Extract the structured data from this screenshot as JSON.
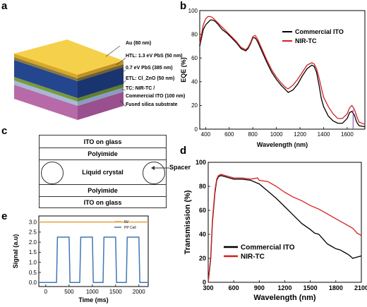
{
  "panels": {
    "a": "a",
    "b": "b",
    "c": "c",
    "d": "d",
    "e": "e"
  },
  "stack": {
    "layers": [
      "Au (80 nm)",
      "HTL: 1.3 eV PbS (50 nm)",
      "0.7 eV PbS (385 nm)",
      "ETL: Cl_ZnO (50 nm)",
      "TC: NIR-TC /",
      "Commercial ITO (100 nm)",
      "Fused silica substrate"
    ],
    "colors": {
      "gold": "#f2c232",
      "pbs": "#1f3d8f",
      "zno": "#7a9a3a",
      "tco": "#9fb0d0",
      "silica": "#c98ac0"
    }
  },
  "lc_cell": {
    "layers": [
      "ITO on glass",
      "Polyimide",
      "Liquid crystal",
      "Polyimide",
      "ITO on glass"
    ],
    "spacer_label": "Spacer"
  },
  "chart_data": [
    {
      "type": "line",
      "panel": "b",
      "xlabel": "Wavelength (nm)",
      "ylabel": "EQE (%)",
      "xlim": [
        350,
        1750
      ],
      "ylim": [
        0,
        100
      ],
      "xticks": [
        400,
        600,
        800,
        1000,
        1200,
        1400,
        1600
      ],
      "yticks": [
        0,
        20,
        40,
        60,
        80,
        100
      ],
      "legend_position": "top-right",
      "series": [
        {
          "name": "Commercial ITO",
          "color": "#000000",
          "x": [
            350,
            380,
            400,
            420,
            440,
            460,
            480,
            500,
            540,
            580,
            620,
            660,
            700,
            740,
            760,
            780,
            800,
            820,
            840,
            880,
            920,
            960,
            1000,
            1040,
            1080,
            1100,
            1140,
            1180,
            1220,
            1260,
            1300,
            1320,
            1340,
            1360,
            1380,
            1400,
            1440,
            1480,
            1520,
            1560,
            1600,
            1620,
            1640,
            1660,
            1680,
            1700,
            1750
          ],
          "y": [
            70,
            84,
            88,
            90,
            92,
            92,
            91,
            89,
            84,
            81,
            77,
            73,
            68,
            66,
            68,
            72,
            77,
            77,
            74,
            65,
            56,
            48,
            42,
            37,
            33,
            31,
            33,
            38,
            45,
            51,
            54,
            53,
            48,
            38,
            26,
            19,
            11,
            7,
            5,
            5,
            9,
            14,
            15,
            12,
            6,
            3,
            2
          ]
        },
        {
          "name": "NIR-TC",
          "color": "#d42020",
          "x": [
            350,
            380,
            400,
            420,
            440,
            460,
            480,
            500,
            540,
            580,
            620,
            660,
            700,
            740,
            760,
            780,
            800,
            820,
            840,
            880,
            920,
            960,
            1000,
            1040,
            1080,
            1100,
            1140,
            1180,
            1220,
            1260,
            1300,
            1320,
            1340,
            1360,
            1380,
            1400,
            1440,
            1480,
            1520,
            1560,
            1600,
            1620,
            1640,
            1660,
            1680,
            1700,
            1750
          ],
          "y": [
            72,
            88,
            93,
            95,
            95,
            94,
            92,
            90,
            86,
            82,
            78,
            74,
            69,
            67,
            69,
            73,
            78,
            79,
            76,
            67,
            58,
            50,
            44,
            39,
            35,
            34,
            37,
            42,
            48,
            54,
            56,
            55,
            51,
            44,
            35,
            27,
            19,
            13,
            9,
            9,
            13,
            18,
            20,
            17,
            11,
            6,
            4
          ]
        }
      ]
    },
    {
      "type": "line",
      "panel": "d",
      "xlabel": "Wavelength (nm)",
      "ylabel": "Transmission (%)",
      "xlim": [
        300,
        2100
      ],
      "ylim": [
        0,
        100
      ],
      "xticks": [
        300,
        600,
        900,
        1200,
        1500,
        1800,
        2100
      ],
      "yticks": [
        0,
        20,
        40,
        60,
        80,
        100
      ],
      "legend_position": "bottom-left",
      "series": [
        {
          "name": "Commercial ITO",
          "color": "#000000",
          "x": [
            300,
            330,
            350,
            380,
            400,
            420,
            450,
            500,
            550,
            600,
            700,
            800,
            900,
            1000,
            1100,
            1200,
            1300,
            1400,
            1500,
            1550,
            1600,
            1650,
            1700,
            1750,
            1800,
            1850,
            1900,
            1950,
            2000,
            2050,
            2100
          ],
          "y": [
            0,
            20,
            50,
            75,
            85,
            88,
            89,
            88,
            87,
            86,
            86,
            85,
            82,
            76,
            70,
            63,
            56,
            49,
            44,
            41,
            40,
            36,
            32,
            30,
            28,
            27,
            25,
            23,
            20,
            21,
            22
          ]
        },
        {
          "name": "NIR-TC",
          "color": "#d42020",
          "x": [
            300,
            330,
            350,
            380,
            400,
            420,
            450,
            500,
            550,
            600,
            700,
            800,
            880,
            900,
            1000,
            1100,
            1200,
            1300,
            1400,
            1500,
            1600,
            1700,
            1800,
            1900,
            2000,
            2050,
            2100
          ],
          "y": [
            0,
            22,
            52,
            77,
            86,
            89,
            90,
            89,
            88,
            87,
            87,
            86,
            87,
            85,
            84,
            80,
            75,
            71,
            68,
            64,
            61,
            57,
            53,
            49,
            45,
            41,
            39
          ]
        }
      ]
    },
    {
      "type": "line",
      "panel": "e",
      "xlabel": "Time (ms)",
      "ylabel": "Signal (a.u)",
      "xlim": [
        -150,
        2200
      ],
      "ylim": [
        -0.2,
        3.3
      ],
      "xticks": [
        0,
        500,
        1000,
        1500,
        2000
      ],
      "yticks": [
        0.0,
        0.5,
        1.0,
        1.5,
        2.0,
        2.5,
        3.0
      ],
      "legend_position": "top-right",
      "series": [
        {
          "name": "6V",
          "color": "#e8a040",
          "x": [
            -150,
            2200
          ],
          "y": [
            3.0,
            3.0
          ]
        },
        {
          "name": "PP Cell",
          "color": "#3f78b5",
          "x": [
            -150,
            230,
            250,
            500,
            520,
            730,
            750,
            1000,
            1020,
            1230,
            1250,
            1500,
            1520,
            1730,
            1750,
            2000,
            2020,
            2200
          ],
          "y": [
            0,
            0,
            2.25,
            2.25,
            0,
            0,
            2.25,
            2.25,
            0,
            0,
            2.25,
            2.25,
            0,
            0,
            2.25,
            2.25,
            0,
            0
          ]
        }
      ]
    }
  ]
}
